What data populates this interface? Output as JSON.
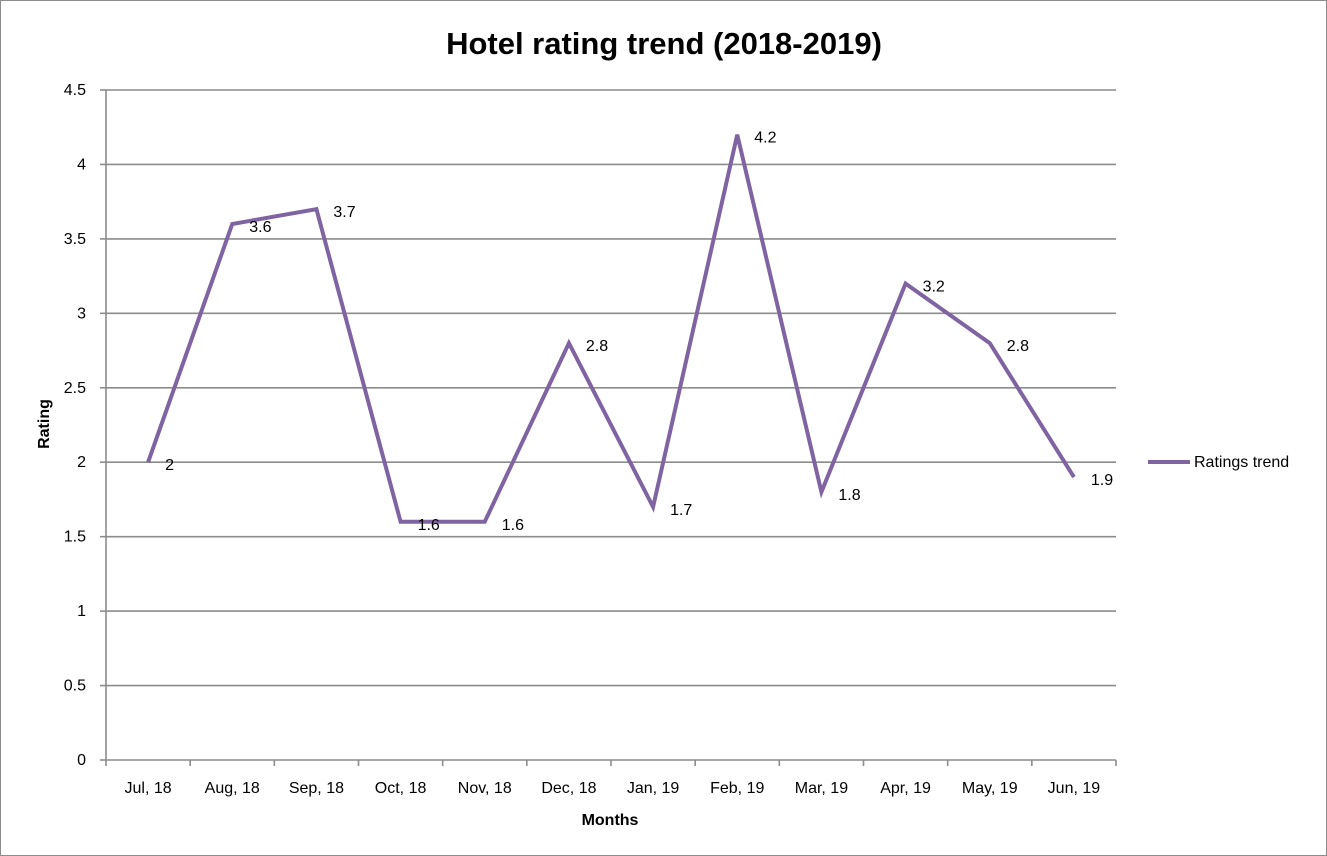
{
  "chart_data": {
    "type": "line",
    "title": "Hotel rating trend (2018-2019)",
    "xlabel": "Months",
    "ylabel": "Rating",
    "categories": [
      "Jul, 18",
      "Aug, 18",
      "Sep, 18",
      "Oct, 18",
      "Nov, 18",
      "Dec, 18",
      "Jan, 19",
      "Feb, 19",
      "Mar, 19",
      "Apr, 19",
      "May, 19",
      "Jun, 19"
    ],
    "series": [
      {
        "name": "Ratings trend",
        "values": [
          2,
          3.6,
          3.7,
          1.6,
          1.6,
          2.8,
          1.7,
          4.2,
          1.8,
          3.2,
          2.8,
          1.9
        ],
        "data_labels": [
          "2",
          "3.6",
          "3.7",
          "1.6",
          "1.6",
          "2.8",
          "1.7",
          "4.2",
          "1.8",
          "3.2",
          "2.8",
          "1.9"
        ],
        "color": "#8064a2"
      }
    ],
    "ylim": [
      0,
      4.5
    ],
    "y_ticks": [
      0,
      0.5,
      1,
      1.5,
      2,
      2.5,
      3,
      3.5,
      4,
      4.5
    ],
    "y_tick_labels": [
      "0",
      "0.5",
      "1",
      "1.5",
      "2",
      "2.5",
      "3",
      "3.5",
      "4",
      "4.5"
    ],
    "grid": true,
    "gridline_color": "#8c8c8c",
    "legend_position": "right"
  }
}
